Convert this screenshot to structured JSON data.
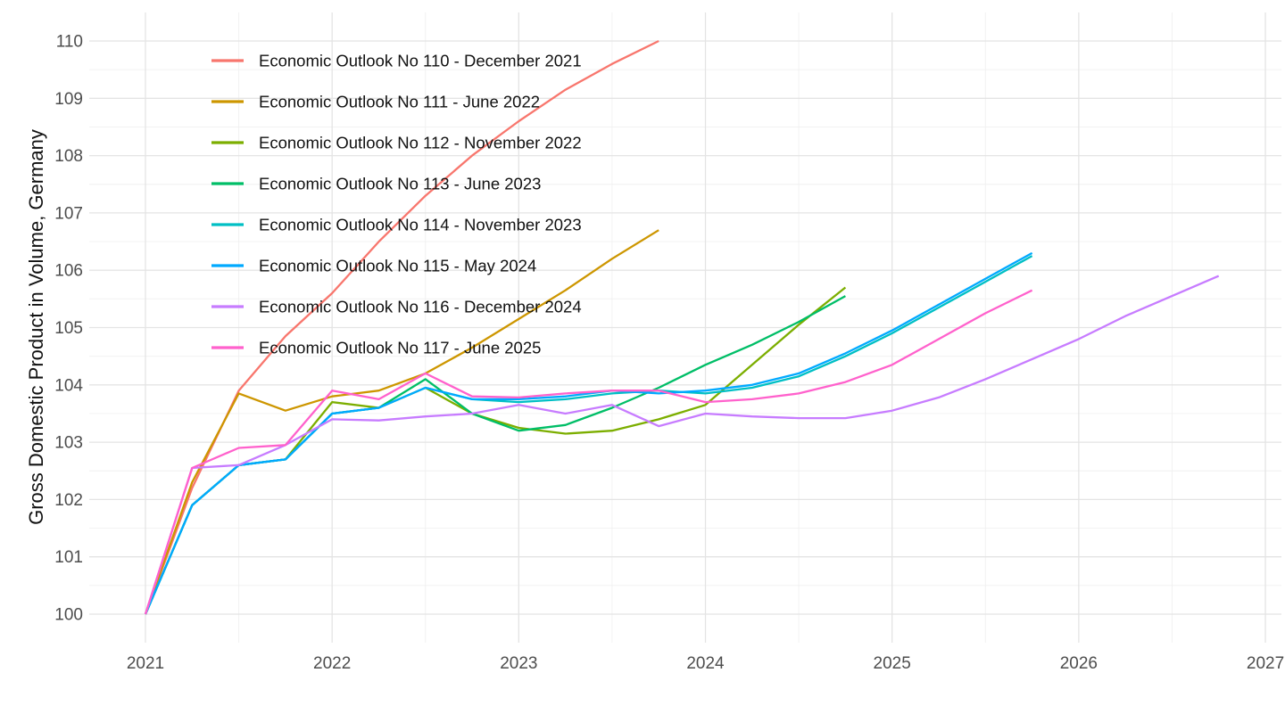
{
  "chart_data": {
    "type": "line",
    "title": "",
    "xlabel": "",
    "ylabel": "Gross Domestic Product in Volume, Germany",
    "grid": "major+minor",
    "legend_position": "top-left-inside",
    "axes": {
      "x_major": [
        2021,
        2022,
        2023,
        2024,
        2025,
        2026,
        2027
      ],
      "x_minor": [
        2021.5,
        2022.5,
        2023.5,
        2024.5,
        2025.5,
        2026.5
      ],
      "y_major": [
        100,
        101,
        102,
        103,
        104,
        105,
        106,
        107,
        108,
        109,
        110
      ],
      "y_minor": [
        100.5,
        101.5,
        102.5,
        103.5,
        104.5,
        105.5,
        106.5,
        107.5,
        108.5,
        109.5
      ],
      "xlim": [
        2020.7,
        2027.1
      ],
      "ylim": [
        99.5,
        110.5
      ],
      "tick_label_color": "#4d4d4d",
      "major_grid_color": "#e4e4e4",
      "minor_grid_color": "#f0f0f0"
    },
    "x_unit": "years, quarterly points (step 0.25), all series indexed 2021Q1 = 100",
    "series": [
      {
        "name": "Economic Outlook No 110 - December 2021",
        "color": "#F8766D",
        "x_start": 2021.0,
        "x_step": 0.25,
        "values": [
          100,
          102.2,
          103.9,
          104.85,
          105.6,
          106.5,
          107.3,
          108.0,
          108.6,
          109.15,
          109.6,
          110.0
        ]
      },
      {
        "name": "Economic Outlook No 111 - June 2022",
        "color": "#CD9600",
        "x_start": 2021.0,
        "x_step": 0.25,
        "values": [
          100,
          102.3,
          103.85,
          103.55,
          103.8,
          103.9,
          104.2,
          104.65,
          105.15,
          105.65,
          106.2,
          106.7
        ]
      },
      {
        "name": "Economic Outlook No 112 - November 2022",
        "color": "#7CAE00",
        "x_start": 2021.0,
        "x_step": 0.25,
        "values": [
          100,
          101.9,
          102.6,
          102.7,
          103.7,
          103.6,
          103.95,
          103.5,
          103.25,
          103.15,
          103.2,
          103.4,
          103.65,
          104.35,
          105.05,
          105.7
        ]
      },
      {
        "name": "Economic Outlook No 113 - June 2023",
        "color": "#00BE67",
        "x_start": 2021.0,
        "x_step": 0.25,
        "values": [
          100,
          101.9,
          102.6,
          102.7,
          103.5,
          103.6,
          104.1,
          103.5,
          103.2,
          103.3,
          103.6,
          103.95,
          104.35,
          104.7,
          105.1,
          105.55
        ]
      },
      {
        "name": "Economic Outlook No 114 - November 2023",
        "color": "#00BFC4",
        "x_start": 2021.0,
        "x_step": 0.25,
        "values": [
          100,
          101.9,
          102.6,
          102.7,
          103.5,
          103.6,
          103.95,
          103.75,
          103.7,
          103.75,
          103.85,
          103.9,
          103.85,
          103.95,
          104.15,
          104.5,
          104.9,
          105.35,
          105.8,
          106.25
        ]
      },
      {
        "name": "Economic Outlook No 115 - May 2024",
        "color": "#00A9FF",
        "x_start": 2021.0,
        "x_step": 0.25,
        "values": [
          100,
          101.9,
          102.6,
          102.7,
          103.5,
          103.6,
          103.95,
          103.75,
          103.75,
          103.8,
          103.9,
          103.85,
          103.9,
          104.0,
          104.2,
          104.55,
          104.95,
          105.4,
          105.85,
          106.3
        ]
      },
      {
        "name": "Economic Outlook No 116 - December 2024",
        "color": "#C77CFF",
        "x_start": 2021.0,
        "x_step": 0.25,
        "values": [
          100,
          102.55,
          102.6,
          102.95,
          103.4,
          103.38,
          103.45,
          103.5,
          103.65,
          103.5,
          103.65,
          103.28,
          103.5,
          103.45,
          103.42,
          103.42,
          103.55,
          103.78,
          104.1,
          104.45,
          104.8,
          105.2,
          105.55,
          105.9
        ]
      },
      {
        "name": "Economic Outlook No 117 - June 2025",
        "color": "#FF61CC",
        "x_start": 2021.0,
        "x_step": 0.25,
        "values": [
          100,
          102.55,
          102.9,
          102.95,
          103.9,
          103.75,
          104.2,
          103.8,
          103.78,
          103.85,
          103.9,
          103.9,
          103.7,
          103.75,
          103.85,
          104.05,
          104.35,
          104.8,
          105.25,
          105.65
        ]
      }
    ]
  }
}
